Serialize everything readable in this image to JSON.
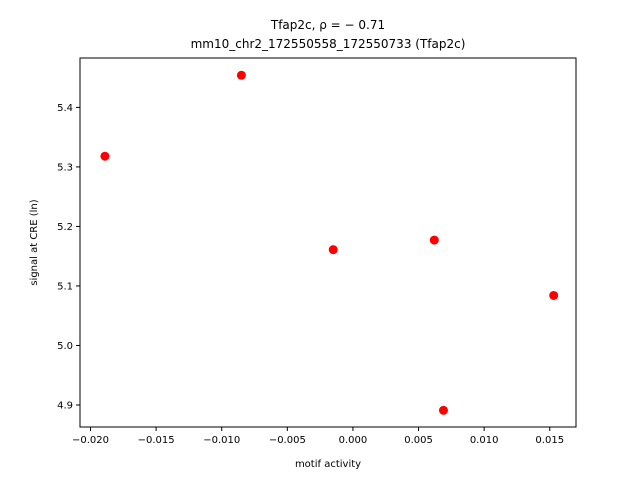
{
  "chart_data": {
    "type": "scatter",
    "title_line1": "Tfap2c, ρ = − 0.71",
    "title_line2": "mm10_chr2_172550558_172550733 (Tfap2c)",
    "xlabel": "motif activity",
    "ylabel": "signal at CRE (ln)",
    "xlim": [
      -0.0208,
      0.017
    ],
    "ylim": [
      4.863,
      5.483
    ],
    "x_ticks": [
      -0.02,
      -0.015,
      -0.01,
      -0.005,
      0.0,
      0.005,
      0.01,
      0.015
    ],
    "x_tick_labels": [
      "−0.020",
      "−0.015",
      "−0.010",
      "−0.005",
      "0.000",
      "0.005",
      "0.010",
      "0.015"
    ],
    "y_ticks": [
      4.9,
      5.0,
      5.1,
      5.2,
      5.3,
      5.4
    ],
    "y_tick_labels": [
      "4.9",
      "5.0",
      "5.1",
      "5.2",
      "5.3",
      "5.4"
    ],
    "grid": false,
    "marker_color": "#ff0000",
    "points": [
      {
        "x": -0.0189,
        "y": 5.318
      },
      {
        "x": -0.0085,
        "y": 5.454
      },
      {
        "x": -0.0015,
        "y": 5.161
      },
      {
        "x": 0.0062,
        "y": 5.177
      },
      {
        "x": 0.0153,
        "y": 5.084
      },
      {
        "x": 0.0069,
        "y": 4.891
      }
    ]
  }
}
